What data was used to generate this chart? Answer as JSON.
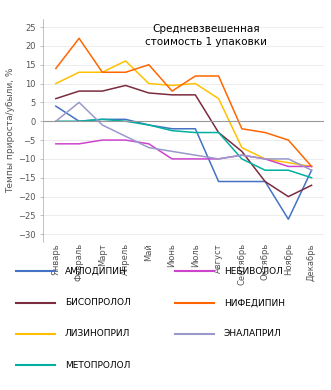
{
  "title": "Средневзвешенная\nстоимость 1 упаковки",
  "ylabel": "Темпы прироста/убыли, %",
  "months": [
    "Январь",
    "Февраль",
    "Март",
    "Апрель",
    "Май",
    "Июнь",
    "Июль",
    "Август",
    "Сентябрь",
    "Октябрь",
    "Ноябрь",
    "Декабрь"
  ],
  "ylim": [
    -32,
    27
  ],
  "yticks": [
    -30,
    -25,
    -20,
    -15,
    -10,
    -5,
    0,
    5,
    10,
    15,
    20,
    25
  ],
  "series": [
    {
      "name": "АМЛОДИПИН",
      "color": "#4472C4",
      "values": [
        4,
        0,
        0.5,
        0.5,
        -1,
        -2,
        -2,
        -16,
        -16,
        -16,
        -26,
        -13
      ]
    },
    {
      "name": "БИСОПРОЛОЛ",
      "color": "#7B2C3E",
      "values": [
        6,
        8,
        8,
        9.5,
        7.5,
        7,
        7,
        -3,
        -8,
        -16,
        -20,
        -17
      ]
    },
    {
      "name": "ЛИЗИНОПРИЛ",
      "color": "#FFC000",
      "values": [
        10,
        13,
        13,
        16,
        10,
        9.5,
        10,
        6,
        -7,
        -10,
        -11,
        -12
      ]
    },
    {
      "name": "МЕТОПРОЛОЛ",
      "color": "#00B0A0",
      "values": [
        0,
        0,
        0.5,
        0,
        -1,
        -2.5,
        -3,
        -3,
        -10,
        -13,
        -13,
        -15
      ]
    },
    {
      "name": "НЕБИВОЛОЛ",
      "color": "#CC44CC",
      "values": [
        -6,
        -6,
        -5,
        -5,
        -6,
        -10,
        -10,
        -10,
        -9,
        -10,
        -12,
        -12
      ]
    },
    {
      "name": "НИФЕДИПИН",
      "color": "#FF6600",
      "values": [
        14,
        22,
        13,
        13,
        15,
        8,
        12,
        12,
        -2,
        -3,
        -5,
        -12
      ]
    },
    {
      "name": "ЭНАЛАПРИЛ",
      "color": "#9999CC",
      "values": [
        0,
        5,
        -1,
        -4,
        -7,
        -8,
        -9,
        -10,
        -9,
        -10,
        -10,
        -13
      ]
    }
  ],
  "legend_col1": [
    "АМЛОДИПИН",
    "БИСОПРОЛОЛ",
    "ЛИЗИНОПРИЛ",
    "МЕТОПРОЛОЛ"
  ],
  "legend_col2": [
    "НЕБИВОЛОЛ",
    "НИФЕДИПИН",
    "ЭНАЛАПРИЛ"
  ],
  "title_fontsize": 7.5,
  "label_fontsize": 6.5,
  "tick_fontsize": 6,
  "legend_fontsize": 6.5
}
